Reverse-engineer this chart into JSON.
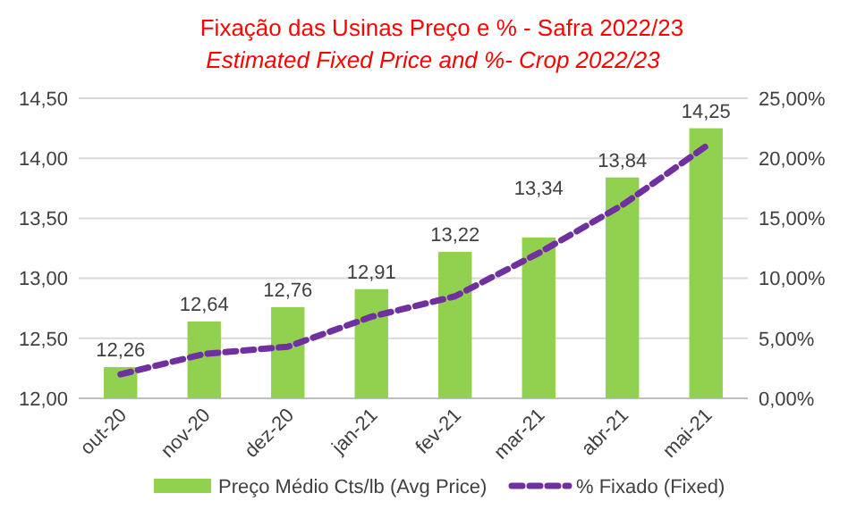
{
  "chart_data": {
    "type": "bar",
    "title": "Fixação das Usinas Preço e % - Safra 2022/23",
    "subtitle": "Estimated Fixed Price and %- Crop 2022/23",
    "categories": [
      "out-20",
      "nov-20",
      "dez-20",
      "jan-21",
      "fev-21",
      "mar-21",
      "abr-21",
      "mai-21"
    ],
    "series": [
      {
        "name": "Preço Médio Cts/lb (Avg Price)",
        "color": "#92d050",
        "values": [
          12.26,
          12.64,
          12.76,
          12.91,
          13.22,
          13.34,
          13.84,
          14.25
        ],
        "value_labels": [
          "12,26",
          "12,64",
          "12,76",
          "12,91",
          "13,22",
          "13,34",
          "13,84",
          "14,25"
        ]
      },
      {
        "name": "% Fixado (Fixed)",
        "type": "line",
        "axis": "y2",
        "color": "#7030a0",
        "line_style": "dashed",
        "values": [
          2.0,
          3.7,
          4.3,
          6.8,
          8.5,
          12.1,
          16.1,
          21.0
        ]
      }
    ],
    "ylim": [
      12,
      14.5
    ],
    "yticks": [
      {
        "value": 12,
        "label": "12,00"
      },
      {
        "value": 12.5,
        "label": "12,50"
      },
      {
        "value": 13,
        "label": "13,00"
      },
      {
        "value": 13.5,
        "label": "13,50"
      },
      {
        "value": 14,
        "label": "14,00"
      },
      {
        "value": 14.5,
        "label": "14,50"
      }
    ],
    "y2lim": [
      0,
      25
    ],
    "y2ticks": [
      {
        "value": 0,
        "label": "0,00%"
      },
      {
        "value": 5,
        "label": "5,00%"
      },
      {
        "value": 10,
        "label": "10,00%"
      },
      {
        "value": 15,
        "label": "15,00%"
      },
      {
        "value": 20,
        "label": "20,00%"
      },
      {
        "value": 25,
        "label": "25,00%"
      }
    ],
    "grid": "y",
    "legend": "bottom"
  }
}
